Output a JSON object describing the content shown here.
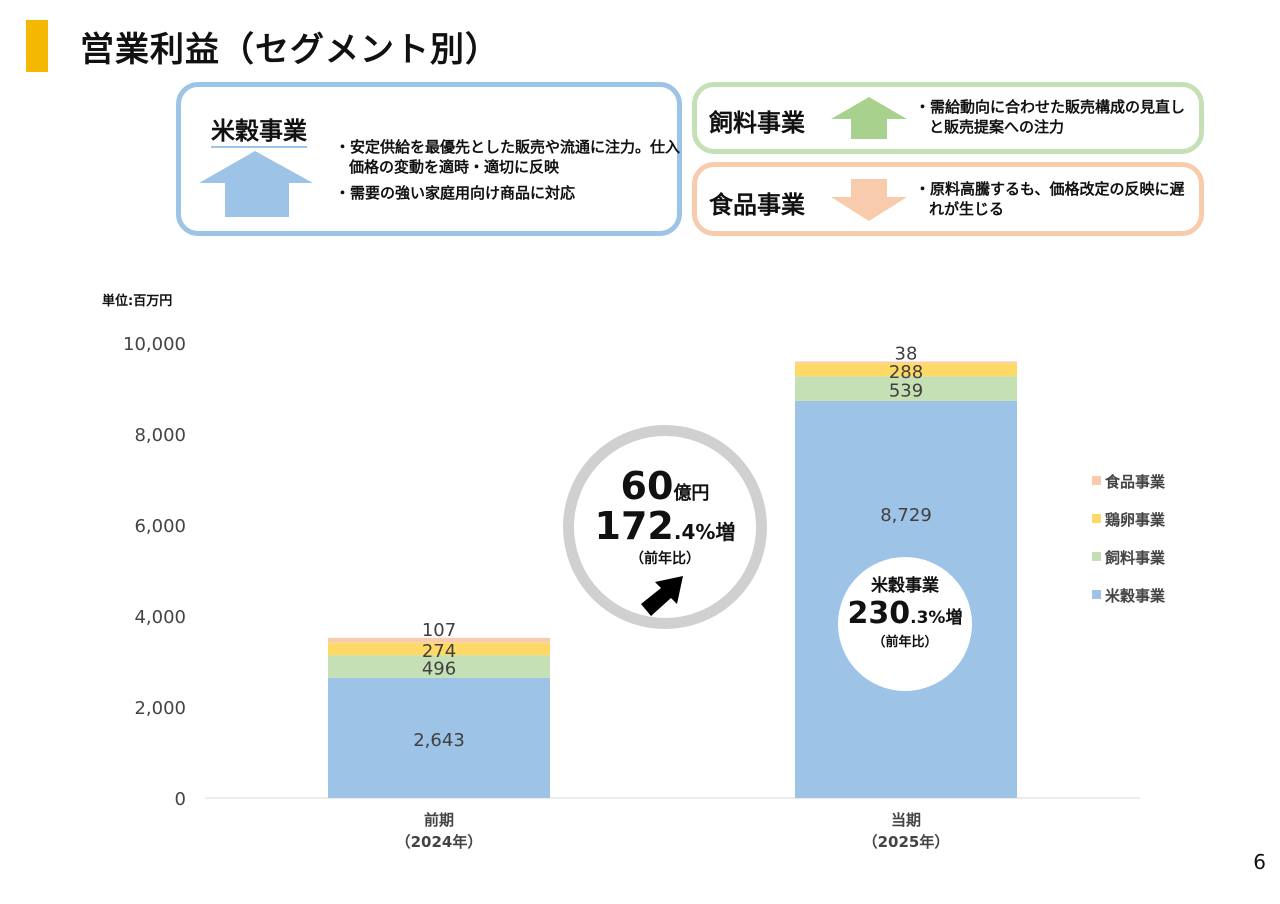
{
  "title": "営業利益（セグメント別）",
  "page_number": "6",
  "unit_label": "単位:百万円",
  "segment_boxes": [
    {
      "name": "米穀事業",
      "direction": "up",
      "color": "#9dc3e6",
      "bullets": [
        "・安定供給を最優先とした販売や流通に注力。仕入価格の変動を適時・適切に反映",
        "・需要の強い家庭用向け商品に対応"
      ]
    },
    {
      "name": "飼料事業",
      "direction": "up",
      "color": "#a9d18e",
      "bullets": [
        "・需給動向に合わせた販売構成の見直しと販売提案への注力"
      ]
    },
    {
      "name": "食品事業",
      "direction": "down",
      "color": "#f4b183",
      "bullets": [
        "・原料高騰するも、価格改定の反映に遅れが生じる"
      ]
    }
  ],
  "callout_total": {
    "amount": "60",
    "amount_unit": "億円",
    "pct_int": "172",
    "pct_dec": ".4%増",
    "note": "（前年比）"
  },
  "callout_rice": {
    "label": "米穀事業",
    "pct_int": "230",
    "pct_dec": ".3%増",
    "note": "（前年比）"
  },
  "chart_data": {
    "type": "bar",
    "stacked": true,
    "categories": [
      "前期\n（2024年）",
      "当期\n（2025年）"
    ],
    "category_lines": [
      [
        "前期",
        "（2024年）"
      ],
      [
        "当期",
        "（2025年）"
      ]
    ],
    "series": [
      {
        "name": "米穀事業",
        "color": "#9dc3e6",
        "values": [
          2643,
          8729
        ],
        "labels": [
          "2,643",
          "8,729"
        ]
      },
      {
        "name": "飼料事業",
        "color": "#c5e0b4",
        "values": [
          496,
          539
        ],
        "labels": [
          "496",
          "539"
        ]
      },
      {
        "name": "鶏卵事業",
        "color": "#ffd966",
        "values": [
          274,
          288
        ],
        "labels": [
          "274",
          "288"
        ]
      },
      {
        "name": "食品事業",
        "color": "#f8cbad",
        "values": [
          107,
          38
        ],
        "labels": [
          "107",
          "38"
        ]
      }
    ],
    "ylim": [
      0,
      10000
    ],
    "yticks": [
      0,
      2000,
      4000,
      6000,
      8000,
      10000
    ],
    "ytick_labels": [
      "0",
      "2,000",
      "4,000",
      "6,000",
      "8,000",
      "10,000"
    ],
    "ylabel": "単位:百万円",
    "grid": false,
    "legend": "right"
  }
}
